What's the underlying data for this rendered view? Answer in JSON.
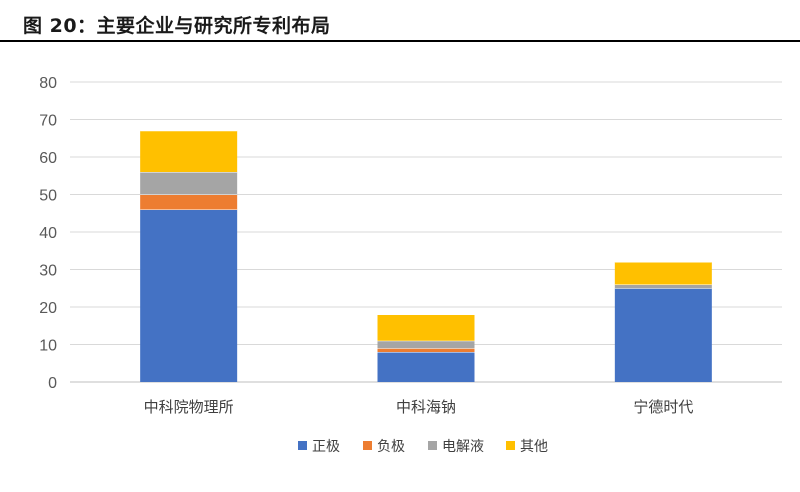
{
  "header": {
    "title": "图 20：主要企业与研究所专利布局"
  },
  "chart_data": {
    "type": "bar",
    "stacked": true,
    "categories": [
      "中科院物理所",
      "中科海钠",
      "宁德时代"
    ],
    "series": [
      {
        "name": "正极",
        "color": "#4472C4",
        "values": [
          46,
          8,
          25
        ]
      },
      {
        "name": "负极",
        "color": "#ED7D31",
        "values": [
          4,
          1,
          0
        ]
      },
      {
        "name": "电解液",
        "color": "#A5A5A5",
        "values": [
          6,
          2,
          1
        ]
      },
      {
        "name": "其他",
        "color": "#FFC000",
        "values": [
          11,
          7,
          6
        ]
      }
    ],
    "ylim": [
      0,
      80
    ],
    "yticks": [
      "0",
      "10",
      "20",
      "30",
      "40",
      "50",
      "60",
      "70",
      "80"
    ],
    "grid": true,
    "legend": "bottom"
  }
}
